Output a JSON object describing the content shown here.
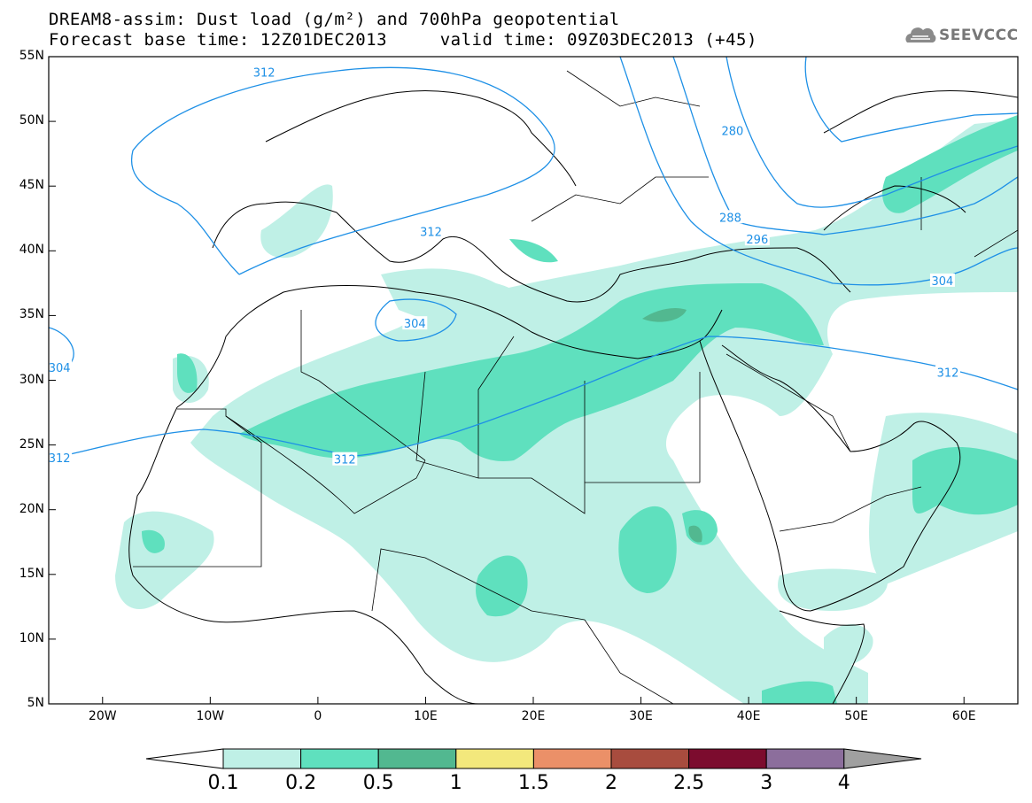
{
  "header": {
    "line1": "DREAM8-assim: Dust load (g/m²) and 700hPa geopotential",
    "line2": "Forecast base time: 12Z01DEC2013     valid time: 09Z03DEC2013 (+45)",
    "logo_text": "SEEVCCC"
  },
  "axes": {
    "lat_labels": [
      "55N",
      "50N",
      "45N",
      "40N",
      "35N",
      "30N",
      "25N",
      "20N",
      "15N",
      "10N",
      "5N"
    ],
    "lon_labels": [
      "20W",
      "10W",
      "0",
      "10E",
      "20E",
      "30E",
      "40E",
      "50E",
      "60E"
    ]
  },
  "contour_labels": [
    {
      "text": "312",
      "lon": -5,
      "lat": 53.8
    },
    {
      "text": "312",
      "lon": 10.5,
      "lat": 41.5
    },
    {
      "text": "304",
      "lon": 9,
      "lat": 34.4
    },
    {
      "text": "304",
      "lon": -24,
      "lat": 31
    },
    {
      "text": "312",
      "lon": -24,
      "lat": 24
    },
    {
      "text": "312",
      "lon": 2.5,
      "lat": 23.9
    },
    {
      "text": "280",
      "lon": 38.5,
      "lat": 49.3
    },
    {
      "text": "288",
      "lon": 38.3,
      "lat": 42.6
    },
    {
      "text": "296",
      "lon": 40.8,
      "lat": 40.9
    },
    {
      "text": "304",
      "lon": 58,
      "lat": 37.7
    },
    {
      "text": "312",
      "lon": 58.5,
      "lat": 30.6
    }
  ],
  "colorbar": {
    "levels": [
      "0.1",
      "0.2",
      "0.5",
      "1",
      "1.5",
      "2",
      "2.5",
      "3",
      "4"
    ],
    "colors": [
      "#bff0e6",
      "#5fe0be",
      "#52b890",
      "#f3e87c",
      "#eb9068",
      "#a84c3e",
      "#7c0c2e",
      "#8c6e9c",
      "#a0a0a0"
    ],
    "under_color": "#ffffff"
  },
  "colors": {
    "contour": "#1e90e6",
    "dust_01": "#bff0e6",
    "dust_02": "#5fe0be",
    "dust_05": "#52b890"
  }
}
